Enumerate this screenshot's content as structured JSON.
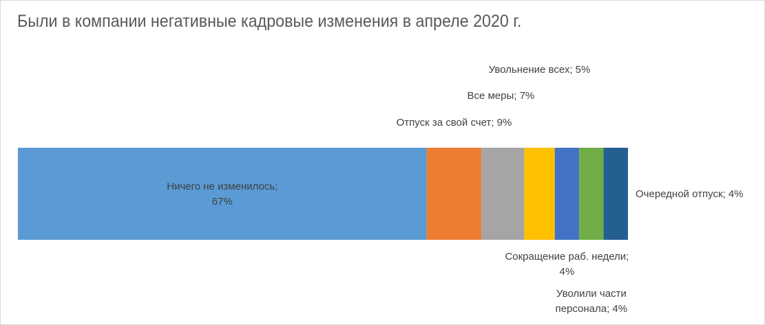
{
  "chart_data": {
    "type": "bar",
    "orientation": "horizontal",
    "stacked": true,
    "title": "Были в компании негативные кадровые изменения в апреле 2020 г.",
    "xlabel": "",
    "ylabel": "",
    "xlim": [
      0,
      100
    ],
    "grid": false,
    "legend": "none",
    "series": [
      {
        "name": "",
        "label_lines": [
          "Ничего не изменилось;",
          "67%"
        ],
        "value": 67,
        "color": "#5b9bd5"
      },
      {
        "name": "",
        "label_lines": [
          "Отпуск за свой счет; 9%"
        ],
        "value": 9,
        "color": "#ed7d31"
      },
      {
        "name": "",
        "label_lines": [
          "Все меры; 7%"
        ],
        "value": 7,
        "color": "#a5a5a5"
      },
      {
        "name": "",
        "label_lines": [
          "Увольнение всех; 5%"
        ],
        "value": 5,
        "color": "#ffc000"
      },
      {
        "name": "",
        "label_lines": [
          "Сокращение раб. недели;",
          "4%"
        ],
        "value": 4,
        "color": "#4472c4"
      },
      {
        "name": "",
        "label_lines": [
          "Уволили части",
          "персонала; 4%"
        ],
        "value": 4,
        "color": "#70ad47"
      },
      {
        "name": "",
        "label_lines": [
          "Очередной отпуск; 4%"
        ],
        "value": 4,
        "color": "#255e91"
      }
    ]
  }
}
